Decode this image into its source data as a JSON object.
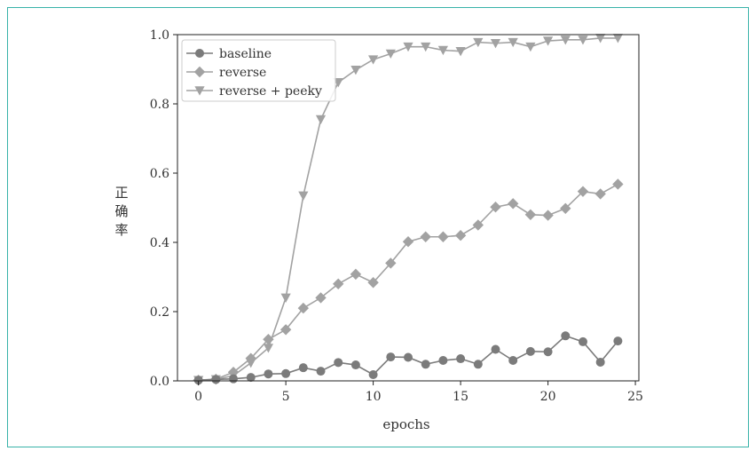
{
  "chart_data": {
    "type": "line",
    "xlabel": "epochs",
    "ylabel": "正确率",
    "xlim": [
      -1.2,
      25.2
    ],
    "ylim": [
      0.0,
      1.0
    ],
    "xticks": [
      0,
      5,
      10,
      15,
      20,
      25
    ],
    "yticks": [
      0.0,
      0.2,
      0.4,
      0.6,
      0.8,
      1.0
    ],
    "xtick_labels": [
      "0",
      "5",
      "10",
      "15",
      "20",
      "25"
    ],
    "ytick_labels": [
      "0.0",
      "0.2",
      "0.4",
      "0.6",
      "0.8",
      "1.0"
    ],
    "grid": false,
    "legend_position": "top-left",
    "x": [
      0,
      1,
      2,
      3,
      4,
      5,
      6,
      7,
      8,
      9,
      10,
      11,
      12,
      13,
      14,
      15,
      16,
      17,
      18,
      19,
      20,
      21,
      22,
      23,
      24
    ],
    "series": [
      {
        "name": "baseline",
        "marker": "circle",
        "color": "#7b7b7b",
        "values": [
          0.002,
          0.004,
          0.006,
          0.01,
          0.02,
          0.021,
          0.038,
          0.028,
          0.053,
          0.046,
          0.018,
          0.069,
          0.068,
          0.048,
          0.059,
          0.064,
          0.048,
          0.091,
          0.059,
          0.085,
          0.084,
          0.13,
          0.113,
          0.054,
          0.115
        ]
      },
      {
        "name": "reverse",
        "marker": "diamond",
        "color": "#a2a2a2",
        "values": [
          0.002,
          0.005,
          0.025,
          0.065,
          0.12,
          0.148,
          0.21,
          0.24,
          0.28,
          0.308,
          0.284,
          0.34,
          0.402,
          0.416,
          0.416,
          0.42,
          0.45,
          0.502,
          0.512,
          0.48,
          0.478,
          0.498,
          0.547,
          0.54,
          0.568
        ]
      },
      {
        "name": "reverse + peeky",
        "marker": "triangle-down",
        "color": "#a2a2a2",
        "values": [
          0.002,
          0.004,
          0.015,
          0.052,
          0.095,
          0.24,
          0.535,
          0.755,
          0.862,
          0.898,
          0.928,
          0.945,
          0.965,
          0.965,
          0.955,
          0.952,
          0.978,
          0.975,
          0.978,
          0.965,
          0.982,
          0.985,
          0.985,
          0.99,
          0.99
        ]
      }
    ]
  }
}
